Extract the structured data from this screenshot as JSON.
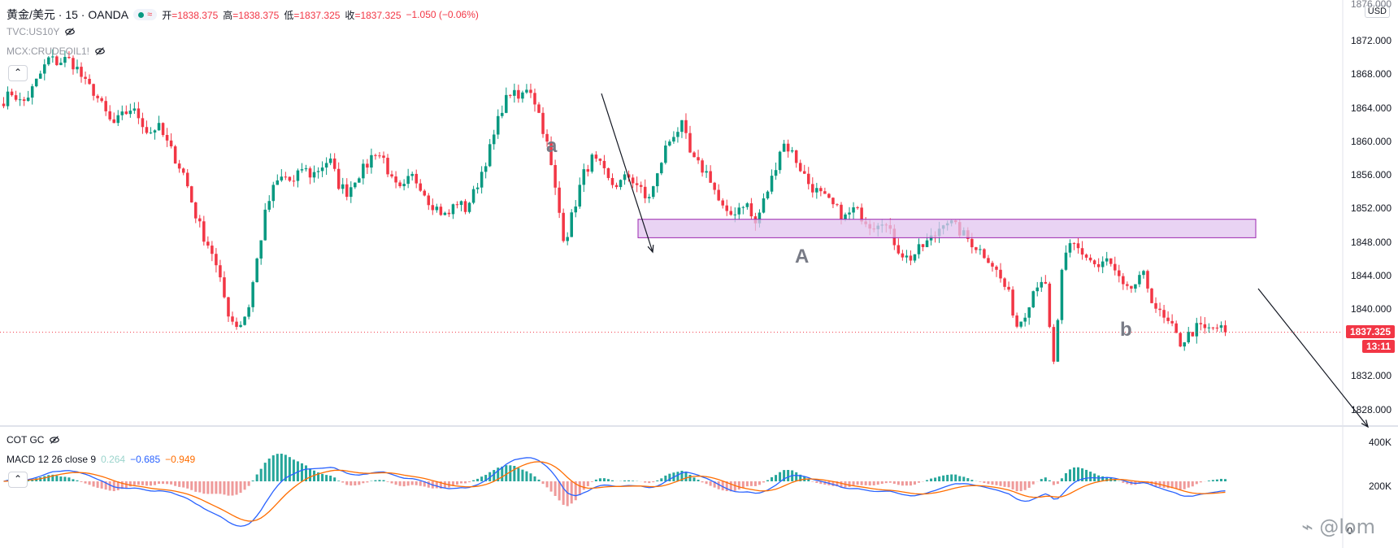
{
  "header": {
    "symbol": "黄金/美元 · 15 · OANDA",
    "pill_text": "≈",
    "ohlc": [
      {
        "label": "开",
        "value": "=1838.375"
      },
      {
        "label": "高",
        "value": "=1838.375"
      },
      {
        "label": "低",
        "value": "=1837.325"
      },
      {
        "label": "收",
        "value": "=1837.325"
      }
    ],
    "change": "−1.050 (−0.06%)",
    "overlays": [
      "TVC:US10Y",
      "MCX:CRUDEOIL1!"
    ]
  },
  "axis": {
    "currency": "USD",
    "current_price": "1837.325",
    "countdown": "13:11",
    "top_cut_label": "1876.000"
  },
  "annotations": {
    "wave_a": "a",
    "wave_b": "b",
    "zone_label": "A"
  },
  "macd_panel": {
    "cot_label": "COT GC",
    "macd_title": "MACD 12 26 close 9",
    "histogram": "0.264",
    "macd": "−0.685",
    "signal": "−0.949",
    "axis_labels": [
      "400K",
      "200K",
      "0"
    ]
  },
  "watermark": "@lom",
  "colors": {
    "up": "#089981",
    "down": "#f23645",
    "zone_fill": "#e1c4ef",
    "zone_border": "#9c27b0",
    "macd_line": "#2962ff",
    "signal_line": "#ff6d00"
  },
  "chart_data": {
    "type": "candlestick",
    "title": "黄金/美元 · 15 · OANDA",
    "y_axis_ticks": [
      1872,
      1868,
      1864,
      1860,
      1856,
      1852,
      1848,
      1844,
      1840,
      1832,
      1828
    ],
    "ylim": [
      1827,
      1876
    ],
    "last_price": 1837.325,
    "zone": {
      "low": 1848.6,
      "high": 1850.8
    },
    "close_path": [
      1865,
      1866,
      1864.5,
      1866,
      1868,
      1870,
      1869.5,
      1870,
      1869,
      1867,
      1866,
      1864,
      1862,
      1863,
      1864,
      1863,
      1861,
      1862,
      1860,
      1858,
      1856,
      1852,
      1849,
      1847,
      1843,
      1839,
      1838,
      1840,
      1846,
      1852,
      1855,
      1856,
      1855,
      1857,
      1856,
      1857,
      1858,
      1855,
      1854,
      1856,
      1857,
      1859,
      1858,
      1855,
      1854,
      1856,
      1855,
      1853,
      1852,
      1851,
      1853,
      1852,
      1854,
      1857,
      1860,
      1864,
      1866,
      1865,
      1867,
      1864,
      1860,
      1854,
      1848,
      1852,
      1856,
      1858,
      1857,
      1855,
      1855,
      1856,
      1855,
      1853,
      1855,
      1859,
      1861,
      1862,
      1858,
      1857,
      1856,
      1853,
      1851,
      1852,
      1853,
      1850,
      1853,
      1856,
      1860,
      1859,
      1857,
      1855,
      1854,
      1853,
      1852,
      1851,
      1852,
      1851,
      1850,
      1851,
      1849,
      1847,
      1846,
      1847,
      1848,
      1849,
      1851,
      1850,
      1849,
      1848,
      1847,
      1846,
      1844,
      1842,
      1838,
      1840,
      1843,
      1844,
      1833,
      1845,
      1848,
      1847,
      1846,
      1845,
      1846,
      1844,
      1842,
      1843,
      1844,
      1841,
      1839,
      1838,
      1836,
      1837,
      1838,
      1837.5,
      1838,
      1837.325
    ]
  }
}
